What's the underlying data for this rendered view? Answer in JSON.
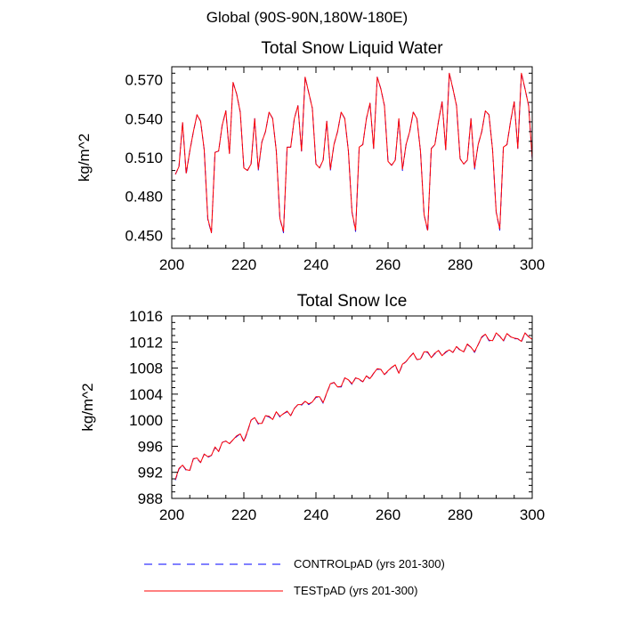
{
  "suptitle": "Global (90S-90N,180W-180E)",
  "legend": [
    {
      "label": "CONTROLpAD (yrs 201-300)",
      "color": "#0000ff",
      "style": "dashed"
    },
    {
      "label": "TESTpAD (yrs 201-300)",
      "color": "#ff0000",
      "style": "solid"
    }
  ],
  "chart_data": [
    {
      "type": "line",
      "title": "Total Snow Liquid Water",
      "xlabel": "",
      "ylabel": "kg/m^2",
      "xlim": [
        200,
        300
      ],
      "ylim": [
        0.44,
        0.58
      ],
      "xticks": [
        200,
        220,
        240,
        260,
        280,
        300
      ],
      "yticks": [
        0.45,
        0.48,
        0.51,
        0.54,
        0.57
      ],
      "ytick_labels": [
        "0.450",
        "0.480",
        "0.510",
        "0.540",
        "0.570"
      ],
      "x_start": 201,
      "series": [
        {
          "name": "CONTROLpAD (yrs 201-300)",
          "color": "#0000ff",
          "dash": "dashed",
          "values": [
            0.497,
            0.503,
            0.537,
            0.497,
            0.515,
            0.53,
            0.543,
            0.538,
            0.516,
            0.462,
            0.452,
            0.514,
            0.515,
            0.535,
            0.546,
            0.513,
            0.568,
            0.559,
            0.545,
            0.502,
            0.5,
            0.505,
            0.54,
            0.5,
            0.522,
            0.53,
            0.545,
            0.54,
            0.515,
            0.463,
            0.452,
            0.518,
            0.518,
            0.54,
            0.55,
            0.515,
            0.572,
            0.56,
            0.548,
            0.505,
            0.502,
            0.508,
            0.538,
            0.5,
            0.52,
            0.53,
            0.545,
            0.54,
            0.515,
            0.468,
            0.453,
            0.518,
            0.52,
            0.54,
            0.552,
            0.517,
            0.572,
            0.563,
            0.55,
            0.507,
            0.504,
            0.508,
            0.54,
            0.5,
            0.52,
            0.53,
            0.545,
            0.54,
            0.515,
            0.466,
            0.453,
            0.517,
            0.52,
            0.538,
            0.553,
            0.516,
            0.575,
            0.563,
            0.55,
            0.509,
            0.505,
            0.508,
            0.54,
            0.501,
            0.52,
            0.53,
            0.546,
            0.543,
            0.516,
            0.468,
            0.454,
            0.518,
            0.52,
            0.538,
            0.553,
            0.517,
            0.575,
            0.563,
            0.55,
            0.509
          ]
        },
        {
          "name": "TESTpAD (yrs 201-300)",
          "color": "#ff0000",
          "dash": "solid",
          "values": [
            0.497,
            0.503,
            0.537,
            0.498,
            0.515,
            0.53,
            0.543,
            0.538,
            0.516,
            0.463,
            0.452,
            0.514,
            0.515,
            0.535,
            0.546,
            0.513,
            0.568,
            0.559,
            0.545,
            0.502,
            0.5,
            0.505,
            0.54,
            0.501,
            0.522,
            0.53,
            0.545,
            0.54,
            0.515,
            0.463,
            0.453,
            0.518,
            0.518,
            0.54,
            0.55,
            0.515,
            0.572,
            0.56,
            0.548,
            0.505,
            0.502,
            0.508,
            0.538,
            0.501,
            0.52,
            0.53,
            0.545,
            0.54,
            0.515,
            0.468,
            0.454,
            0.518,
            0.52,
            0.54,
            0.552,
            0.517,
            0.572,
            0.563,
            0.55,
            0.507,
            0.504,
            0.508,
            0.54,
            0.501,
            0.52,
            0.53,
            0.545,
            0.54,
            0.515,
            0.466,
            0.454,
            0.517,
            0.52,
            0.538,
            0.553,
            0.516,
            0.575,
            0.563,
            0.55,
            0.509,
            0.505,
            0.508,
            0.54,
            0.502,
            0.52,
            0.53,
            0.546,
            0.543,
            0.516,
            0.468,
            0.455,
            0.518,
            0.52,
            0.538,
            0.553,
            0.517,
            0.575,
            0.563,
            0.55,
            0.509
          ]
        }
      ]
    },
    {
      "type": "line",
      "title": "Total Snow Ice",
      "xlabel": "",
      "ylabel": "kg/m^2",
      "xlim": [
        200,
        300
      ],
      "ylim": [
        988,
        1016
      ],
      "xticks": [
        200,
        220,
        240,
        260,
        280,
        300
      ],
      "yticks": [
        988,
        992,
        996,
        1000,
        1004,
        1008,
        1012,
        1016
      ],
      "ytick_labels": [
        "988",
        "992",
        "996",
        "1000",
        "1004",
        "1008",
        "1012",
        "1016"
      ],
      "x_start": 201,
      "series": [
        {
          "name": "CONTROLpAD (yrs 201-300)",
          "color": "#0000ff",
          "dash": "dashed",
          "values": [
            990.8,
            992.5,
            993.1,
            992.3,
            992.3,
            994.1,
            994.1,
            993.5,
            994.8,
            994.3,
            994.6,
            995.8,
            995.2,
            996.6,
            996.8,
            996.4,
            997.0,
            997.5,
            997.9,
            996.7,
            998.2,
            1000.0,
            1000.4,
            999.4,
            999.5,
            1000.7,
            1000.5,
            1000.1,
            1001.3,
            1000.5,
            1001.0,
            1001.3,
            1000.7,
            1001.8,
            1002.4,
            1002.3,
            1002.9,
            1002.4,
            1002.8,
            1003.5,
            1003.6,
            1002.6,
            1004.2,
            1005.5,
            1005.8,
            1005.1,
            1005.1,
            1006.5,
            1006.2,
            1005.5,
            1006.5,
            1006.2,
            1005.9,
            1006.8,
            1006.3,
            1007.2,
            1007.8,
            1007.8,
            1007.0,
            1007.5,
            1008.1,
            1008.4,
            1007.2,
            1008.5,
            1009.0,
            1009.7,
            1010.3,
            1009.3,
            1009.3,
            1010.5,
            1010.4,
            1009.6,
            1010.2,
            1010.7,
            1009.9,
            1010.4,
            1010.8,
            1010.4,
            1011.3,
            1010.7,
            1010.5,
            1011.6,
            1011.2,
            1010.4,
            1011.6,
            1012.7,
            1013.2,
            1012.2,
            1012.2,
            1013.3,
            1012.9,
            1012.1,
            1013.3,
            1012.8,
            1012.5,
            1012.5,
            1012.0,
            1013.4,
            1012.8,
            1012.5
          ]
        },
        {
          "name": "TESTpAD (yrs 201-300)",
          "color": "#ff0000",
          "dash": "solid",
          "values": [
            990.9,
            992.6,
            993.1,
            992.4,
            992.3,
            994.1,
            994.2,
            993.5,
            994.8,
            994.4,
            994.6,
            995.9,
            995.2,
            996.6,
            996.8,
            996.4,
            997.0,
            997.6,
            997.9,
            996.8,
            998.3,
            1000.0,
            1000.4,
            999.5,
            999.5,
            1000.7,
            1000.6,
            1000.1,
            1001.3,
            1000.6,
            1001.0,
            1001.4,
            1000.7,
            1001.8,
            1002.4,
            1002.4,
            1002.9,
            1002.5,
            1002.8,
            1003.6,
            1003.6,
            1002.7,
            1004.2,
            1005.6,
            1005.8,
            1005.1,
            1005.2,
            1006.5,
            1006.2,
            1005.6,
            1006.5,
            1006.3,
            1005.9,
            1006.8,
            1006.4,
            1007.2,
            1007.9,
            1007.8,
            1007.0,
            1007.6,
            1008.1,
            1008.5,
            1007.2,
            1008.6,
            1009.0,
            1009.7,
            1010.3,
            1009.3,
            1009.4,
            1010.5,
            1010.5,
            1009.6,
            1010.3,
            1010.7,
            1009.9,
            1010.5,
            1010.8,
            1010.4,
            1011.3,
            1010.8,
            1010.5,
            1011.7,
            1011.2,
            1010.5,
            1011.6,
            1012.8,
            1013.2,
            1012.3,
            1012.2,
            1013.4,
            1012.9,
            1012.2,
            1013.3,
            1012.8,
            1012.6,
            1012.5,
            1012.1,
            1013.4,
            1012.8,
            1012.4
          ]
        }
      ]
    }
  ]
}
